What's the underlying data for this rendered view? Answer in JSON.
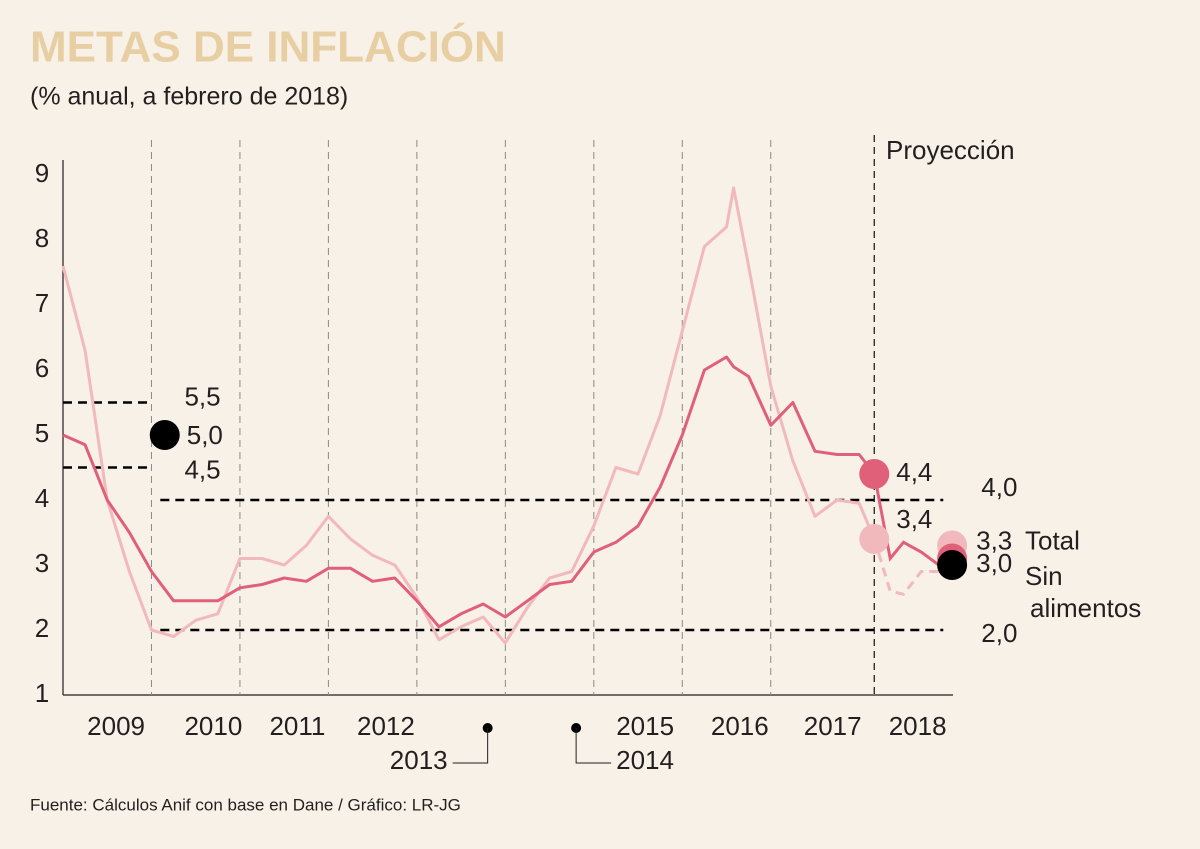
{
  "chart_data": {
    "type": "line",
    "title": "METAS DE INFLACIÓN",
    "subtitle": "(% anual, a febrero de 2018)",
    "source": "Fuente: Cálculos Anif con base en Dane / Gráfico: LR-JG",
    "projection_label": "Proyección",
    "projection_line": 2018.17,
    "xlim": [
      2009.0,
      2019.06
    ],
    "ylim": [
      1,
      9
    ],
    "yticks": [
      1,
      2,
      3,
      4,
      5,
      6,
      7,
      8,
      9
    ],
    "xticks": [
      {
        "value": 2009.6,
        "label": "2009"
      },
      {
        "value": 2010.7,
        "label": "2010"
      },
      {
        "value": 2011.65,
        "label": "2011"
      },
      {
        "value": 2012.65,
        "label": "2012"
      },
      {
        "value": 2013.8,
        "label": "2013"
      },
      {
        "value": 2014.8,
        "label": "2014"
      },
      {
        "value": 2015.58,
        "label": "2015"
      },
      {
        "value": 2016.65,
        "label": "2016"
      },
      {
        "value": 2017.7,
        "label": "2017"
      },
      {
        "value": 2018.66,
        "label": "2018"
      }
    ],
    "xgrid": [
      2010,
      2011,
      2012,
      2013,
      2014,
      2015,
      2016,
      2017
    ],
    "x": [
      2009.0,
      2009.25,
      2009.5,
      2009.75,
      2010.0,
      2010.25,
      2010.5,
      2010.75,
      2011.0,
      2011.25,
      2011.5,
      2011.75,
      2012.0,
      2012.25,
      2012.5,
      2012.75,
      2013.0,
      2013.25,
      2013.5,
      2013.75,
      2014.0,
      2014.25,
      2014.5,
      2014.75,
      2015.0,
      2015.25,
      2015.5,
      2015.75,
      2016.0,
      2016.25,
      2016.5,
      2016.58,
      2016.75,
      2017.0,
      2017.25,
      2017.5,
      2017.75,
      2018.0,
      2018.17
    ],
    "projection_x": [
      2018.17,
      2018.35,
      2018.5,
      2018.7,
      2018.9,
      2019.05
    ],
    "series": [
      {
        "name": "Total",
        "color": "#f2b9bd",
        "projection_dashed": true,
        "values": [
          7.6,
          6.3,
          4.0,
          2.9,
          2.0,
          1.9,
          2.15,
          2.25,
          3.1,
          3.1,
          3.0,
          3.3,
          3.75,
          3.4,
          3.15,
          3.0,
          2.5,
          1.85,
          2.05,
          2.2,
          1.8,
          2.35,
          2.8,
          2.9,
          3.6,
          4.5,
          4.4,
          5.3,
          6.6,
          7.9,
          8.2,
          8.8,
          7.6,
          5.75,
          4.6,
          3.75,
          4.0,
          3.95,
          3.4
        ],
        "projection_values": [
          3.4,
          2.6,
          2.55,
          2.9,
          2.9,
          3.3
        ]
      },
      {
        "name": "Sin alimentos",
        "color": "#e0607a",
        "projection_dashed": false,
        "values": [
          5.0,
          4.85,
          4.0,
          3.5,
          2.9,
          2.45,
          2.45,
          2.45,
          2.65,
          2.7,
          2.8,
          2.75,
          2.95,
          2.95,
          2.75,
          2.8,
          2.45,
          2.05,
          2.25,
          2.4,
          2.2,
          2.45,
          2.7,
          2.75,
          3.2,
          3.35,
          3.6,
          4.2,
          5.0,
          6.0,
          6.2,
          6.05,
          5.9,
          5.15,
          5.5,
          4.75,
          4.7,
          4.7,
          4.4
        ],
        "projection_values": [
          4.4,
          3.1,
          3.35,
          3.2,
          3.0,
          3.1
        ]
      }
    ],
    "bands": [
      {
        "x": [
          2009.0,
          2010.0
        ],
        "values": [
          4.5,
          5.5
        ],
        "value_labels": [
          "4,5",
          "5,5"
        ]
      },
      {
        "x": [
          2010.1,
          2018.95
        ],
        "values": [
          2.0,
          4.0
        ],
        "value_labels": [
          "2,0",
          "4,0"
        ]
      }
    ],
    "points": [
      {
        "x": 2010.15,
        "value": 5.0,
        "label": "5,0",
        "color": "#000000"
      },
      {
        "x": 2018.17,
        "value": 4.4,
        "label": "4,4",
        "color": "#e0607a"
      },
      {
        "x": 2018.17,
        "value": 3.4,
        "label": "3,4",
        "color": "#f2b9bd"
      },
      {
        "x": 2019.05,
        "value": 3.3,
        "label": "3,3",
        "color": "#f2b9bd"
      },
      {
        "x": 2019.05,
        "value": 3.1,
        "color": "#e0607a"
      },
      {
        "x": 2019.05,
        "value": 3.0,
        "label": "3,0",
        "color": "#000000"
      }
    ]
  }
}
